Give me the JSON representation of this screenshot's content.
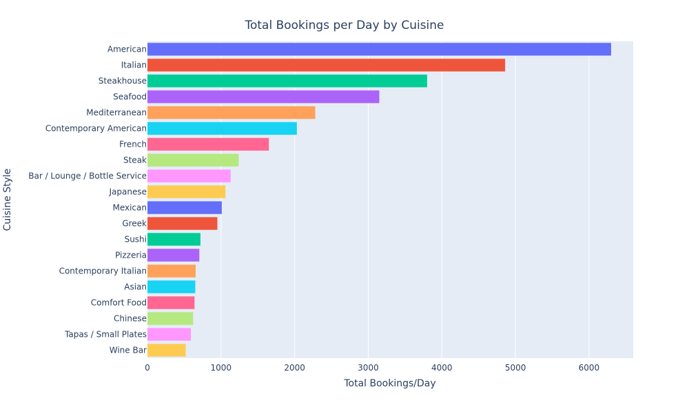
{
  "chart_data": {
    "type": "bar",
    "orientation": "horizontal",
    "title": "Total Bookings per Day by Cuisine",
    "xlabel": "Total Bookings/Day",
    "ylabel": "Cuisine Style",
    "xlim": [
      0,
      6600
    ],
    "x_ticks": [
      0,
      1000,
      2000,
      3000,
      4000,
      5000,
      6000
    ],
    "x_tick_labels": [
      "0",
      "1000",
      "2000",
      "3000",
      "4000",
      "5000",
      "6000"
    ],
    "grid": true,
    "categories": [
      "American",
      "Italian",
      "Steakhouse",
      "Seafood",
      "Mediterranean",
      "Contemporary American",
      "French",
      "Steak",
      "Bar / Lounge / Bottle Service",
      "Japanese",
      "Mexican",
      "Greek",
      "Sushi",
      "Pizzeria",
      "Contemporary Italian",
      "Asian",
      "Comfort Food",
      "Chinese",
      "Tapas / Small Plates",
      "Wine Bar"
    ],
    "values": [
      6300,
      4860,
      3800,
      3150,
      2280,
      2030,
      1650,
      1240,
      1130,
      1060,
      1010,
      950,
      720,
      705,
      655,
      650,
      640,
      620,
      590,
      520
    ],
    "colors": [
      "#636efa",
      "#ef553b",
      "#00cc96",
      "#ab63fa",
      "#ffa15a",
      "#19d3f3",
      "#ff6692",
      "#b6e880",
      "#ff97ff",
      "#fecb52",
      "#636efa",
      "#ef553b",
      "#00cc96",
      "#ab63fa",
      "#ffa15a",
      "#19d3f3",
      "#ff6692",
      "#b6e880",
      "#ff97ff",
      "#fecb52"
    ],
    "plot_background": "#e5ecf6",
    "text_color": "#2a3f5f"
  }
}
